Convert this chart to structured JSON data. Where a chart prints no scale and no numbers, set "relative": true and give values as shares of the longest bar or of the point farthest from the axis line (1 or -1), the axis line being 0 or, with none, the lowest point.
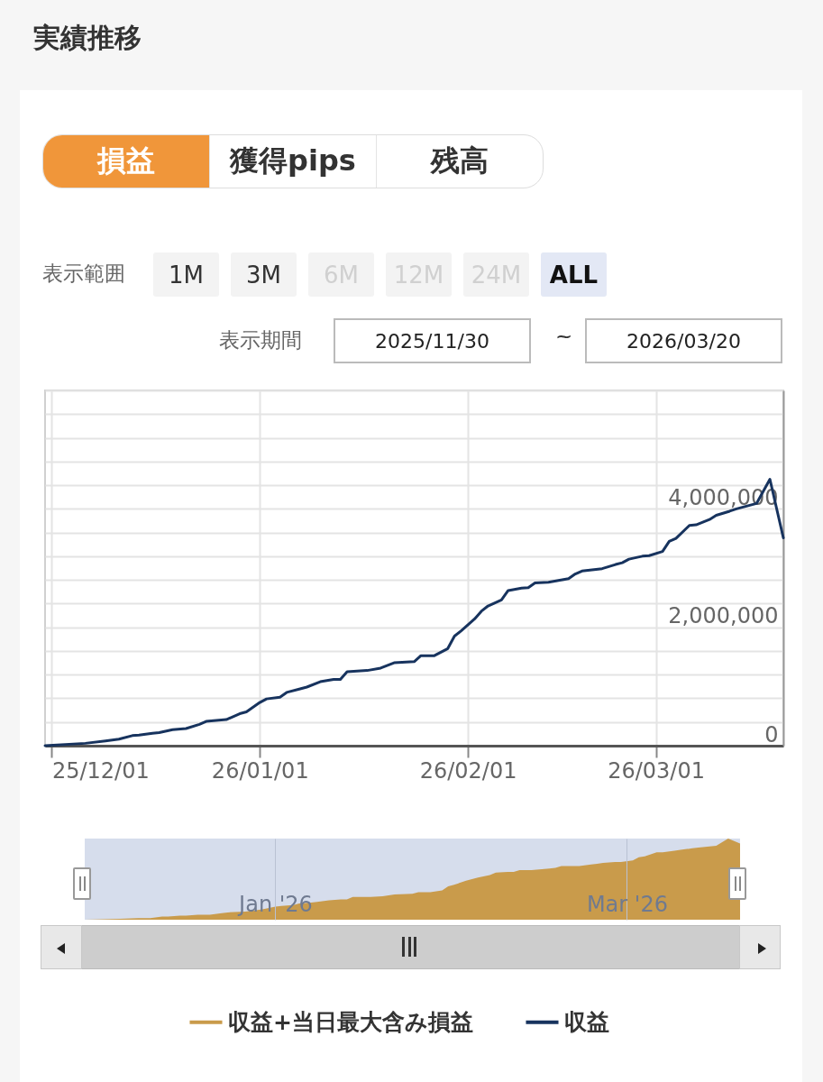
{
  "chart_data": [
    {
      "type": "line",
      "title": "実績推移",
      "annotations": [
        "損益",
        "獲得pips",
        "残高",
        "表示範囲",
        "1M",
        "3M",
        "6M",
        "12M",
        "24M",
        "ALL",
        "表示期間",
        "2025/11/30",
        "~",
        "2026/03/20"
      ],
      "x": [
        "2025-11-30",
        "2025-12-06",
        "2025-12-09",
        "2025-12-11",
        "2025-12-13",
        "2025-12-14",
        "2025-12-16",
        "2025-12-17",
        "2025-12-19",
        "2025-12-21",
        "2025-12-23",
        "2025-12-24",
        "2025-12-27",
        "2025-12-29",
        "2025-12-30",
        "2026-01-01",
        "2026-01-02",
        "2026-01-04",
        "2026-01-05",
        "2026-01-07",
        "2026-01-08",
        "2026-01-10",
        "2026-01-12",
        "2026-01-13",
        "2026-01-14",
        "2026-01-17",
        "2026-01-19",
        "2026-01-21",
        "2026-01-24",
        "2026-01-25",
        "2026-01-27",
        "2026-01-29",
        "2026-01-30",
        "2026-01-31",
        "2026-02-02",
        "2026-02-03",
        "2026-02-04",
        "2026-02-06",
        "2026-02-07",
        "2026-02-09",
        "2026-02-10",
        "2026-02-11",
        "2026-02-13",
        "2026-02-16",
        "2026-02-17",
        "2026-02-18",
        "2026-02-21",
        "2026-02-23",
        "2026-02-24",
        "2026-02-25",
        "2026-02-27",
        "2026-02-28",
        "2026-03-02",
        "2026-03-03",
        "2026-03-04",
        "2026-03-06",
        "2026-03-07",
        "2026-03-09",
        "2026-03-10",
        "2026-03-12",
        "2026-03-13",
        "2026-03-16",
        "2026-03-18",
        "2026-03-20"
      ],
      "series": [
        {
          "name": "収益",
          "color": "#17335e",
          "values": [
            0,
            40000,
            80000,
            110000,
            170000,
            180000,
            210000,
            220000,
            270000,
            290000,
            360000,
            410000,
            440000,
            540000,
            570000,
            730000,
            790000,
            820000,
            900000,
            960000,
            990000,
            1080000,
            1120000,
            1120000,
            1250000,
            1270000,
            1310000,
            1400000,
            1420000,
            1520000,
            1520000,
            1640000,
            1850000,
            1940000,
            2140000,
            2270000,
            2360000,
            2460000,
            2620000,
            2660000,
            2670000,
            2750000,
            2760000,
            2820000,
            2900000,
            2950000,
            2990000,
            3060000,
            3090000,
            3150000,
            3200000,
            3210000,
            3280000,
            3450000,
            3500000,
            3720000,
            3730000,
            3820000,
            3890000,
            3960000,
            4000000,
            4090000,
            4500000,
            3510000
          ]
        }
      ],
      "xlim": [
        "2025-11-30",
        "2026-03-20"
      ],
      "xticks": [
        {
          "value": "2025-12-01",
          "label": "25/12/01"
        },
        {
          "value": "2026-01-01",
          "label": "26/01/01"
        },
        {
          "value": "2026-02-01",
          "label": "26/02/01"
        },
        {
          "value": "2026-03-01",
          "label": "26/03/01"
        }
      ],
      "ylim": [
        0,
        6000000
      ],
      "yticks": [
        0,
        {
          "value": 400000,
          "label": null
        },
        {
          "value": 800000,
          "label": null
        },
        {
          "value": 1200000,
          "label": null
        },
        {
          "value": 1600000,
          "label": null
        },
        {
          "value": 2000000,
          "label": "2,000,000"
        },
        {
          "value": 2400000,
          "label": null
        },
        {
          "value": 2800000,
          "label": null
        },
        {
          "value": 3200000,
          "label": null
        },
        {
          "value": 3600000,
          "label": null
        },
        {
          "value": 4000000,
          "label": "4,000,000"
        },
        {
          "value": 4400000,
          "label": null
        },
        {
          "value": 4800000,
          "label": null
        },
        {
          "value": 5200000,
          "label": null
        },
        {
          "value": 5600000,
          "label": null
        },
        {
          "value": 6000000,
          "label": null
        }
      ],
      "grid": true,
      "legend": "bottom"
    },
    {
      "type": "area",
      "relative": true,
      "tick_labels": "x",
      "x": [
        "2025-11-30",
        "2025-12-06",
        "2025-12-09",
        "2025-12-11",
        "2025-12-13",
        "2025-12-14",
        "2025-12-16",
        "2025-12-17",
        "2025-12-19",
        "2025-12-21",
        "2025-12-23",
        "2025-12-24",
        "2025-12-27",
        "2025-12-29",
        "2025-12-30",
        "2026-01-01",
        "2026-01-02",
        "2026-01-04",
        "2026-01-05",
        "2026-01-07",
        "2026-01-08",
        "2026-01-10",
        "2026-01-12",
        "2026-01-13",
        "2026-01-14",
        "2026-01-17",
        "2026-01-19",
        "2026-01-21",
        "2026-01-24",
        "2026-01-25",
        "2026-01-27",
        "2026-01-29",
        "2026-01-30",
        "2026-01-31",
        "2026-02-02",
        "2026-02-03",
        "2026-02-04",
        "2026-02-06",
        "2026-02-07",
        "2026-02-09",
        "2026-02-10",
        "2026-02-11",
        "2026-02-13",
        "2026-02-16",
        "2026-02-17",
        "2026-02-18",
        "2026-02-21",
        "2026-02-23",
        "2026-02-24",
        "2026-02-25",
        "2026-02-27",
        "2026-02-28",
        "2026-03-02",
        "2026-03-03",
        "2026-03-04",
        "2026-03-06",
        "2026-03-07",
        "2026-03-09",
        "2026-03-10",
        "2026-03-12",
        "2026-03-13",
        "2026-03-16",
        "2026-03-18",
        "2026-03-20"
      ],
      "series": [
        {
          "name": "収益+当日最大含み損益",
          "color": "#c99b4b",
          "values": [
            0,
            0.01,
            0.02,
            0.02,
            0.04,
            0.04,
            0.05,
            0.05,
            0.06,
            0.06,
            0.08,
            0.09,
            0.1,
            0.12,
            0.13,
            0.16,
            0.17,
            0.18,
            0.2,
            0.21,
            0.22,
            0.24,
            0.25,
            0.25,
            0.28,
            0.28,
            0.29,
            0.31,
            0.32,
            0.34,
            0.34,
            0.36,
            0.41,
            0.43,
            0.48,
            0.5,
            0.52,
            0.55,
            0.58,
            0.59,
            0.59,
            0.61,
            0.61,
            0.63,
            0.64,
            0.66,
            0.66,
            0.68,
            0.69,
            0.7,
            0.71,
            0.71,
            0.73,
            0.77,
            0.78,
            0.83,
            0.83,
            0.85,
            0.86,
            0.88,
            0.89,
            0.91,
            1,
            0.94
          ]
        }
      ],
      "xlim": [
        "2025-11-30",
        "2026-03-20"
      ],
      "xticks": [
        {
          "value": "2026-01-01",
          "label": "Jan '26"
        },
        {
          "value": "2026-03-01",
          "label": "Mar '26"
        }
      ],
      "grid": "x",
      "legend": "bottom"
    }
  ]
}
